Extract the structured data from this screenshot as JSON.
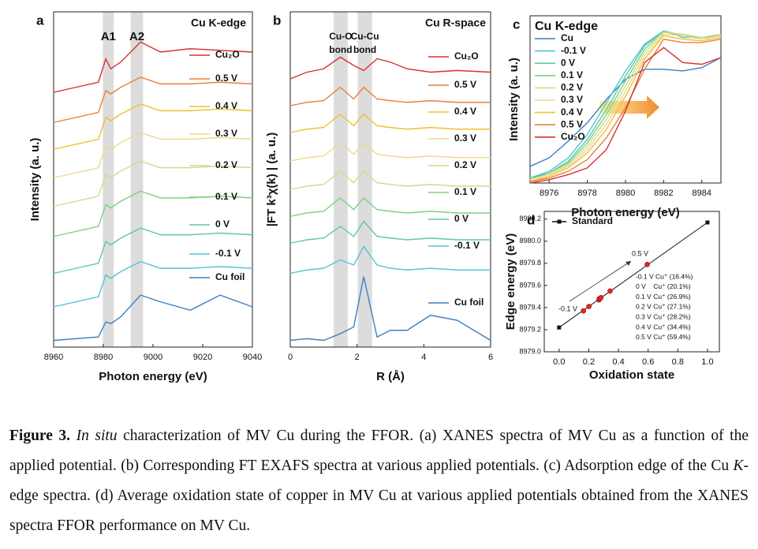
{
  "chart_data": [
    {
      "type": "line",
      "panel_label": "a",
      "title": "Cu K-edge",
      "xlabel": "Photon energy (eV)",
      "ylabel": "Intensity (a. u.)",
      "xlim": [
        8960,
        9040
      ],
      "xticks": [
        8960,
        8980,
        9000,
        9020,
        9040
      ],
      "ylim": [
        0,
        10
      ],
      "legend": "right",
      "regions": [
        {
          "label": [
            "A1"
          ],
          "x": [
            8979.8,
            8984.2
          ]
        },
        {
          "label": [
            "A2"
          ],
          "x": [
            8991,
            8996
          ]
        }
      ],
      "x": [
        8960,
        8978,
        8981,
        8983,
        8987,
        8995,
        9003,
        9015,
        9027,
        9040
      ],
      "series": [
        {
          "name": "Cu₂O",
          "color": "#d83232",
          "values": [
            7.6,
            7.9,
            8.6,
            8.3,
            8.5,
            9.1,
            8.8,
            8.9,
            8.85,
            8.8
          ]
        },
        {
          "name": "0.5 V",
          "color": "#e8803a",
          "values": [
            6.7,
            7.0,
            7.65,
            7.55,
            7.75,
            8.05,
            7.85,
            7.85,
            7.9,
            7.85
          ]
        },
        {
          "name": "0.4 V",
          "color": "#f0c030",
          "values": [
            5.9,
            6.2,
            6.85,
            6.75,
            6.95,
            7.25,
            7.05,
            7.05,
            7.1,
            7.05
          ]
        },
        {
          "name": "0.3 V",
          "color": "#ecd98e",
          "values": [
            5.05,
            5.35,
            6.0,
            5.9,
            6.1,
            6.4,
            6.2,
            6.2,
            6.25,
            6.2
          ]
        },
        {
          "name": "0.2 V",
          "color": "#cfdc8a",
          "values": [
            4.2,
            4.5,
            5.15,
            5.05,
            5.25,
            5.55,
            5.35,
            5.35,
            5.4,
            5.35
          ]
        },
        {
          "name": "0.1 V",
          "color": "#7fcf80",
          "values": [
            3.3,
            3.6,
            4.25,
            4.15,
            4.35,
            4.65,
            4.45,
            4.45,
            4.5,
            4.45
          ]
        },
        {
          "name": "0 V",
          "color": "#5ec8a8",
          "values": [
            2.2,
            2.5,
            3.15,
            3.05,
            3.25,
            3.55,
            3.35,
            3.35,
            3.4,
            3.35
          ]
        },
        {
          "name": "-0.1 V",
          "color": "#50c6d6",
          "values": [
            1.2,
            1.5,
            2.15,
            2.05,
            2.25,
            2.55,
            2.35,
            2.35,
            2.4,
            2.35
          ]
        },
        {
          "name": "Cu foil",
          "color": "#3d7fbf",
          "values": [
            0.2,
            0.3,
            0.75,
            0.7,
            0.9,
            1.55,
            1.35,
            1.1,
            1.55,
            1.2
          ]
        }
      ]
    },
    {
      "type": "line",
      "panel_label": "b",
      "title": "Cu R-space",
      "xlabel": "R (Å)",
      "ylabel": "|FT k³χ(k) | (a. u.)",
      "xlim": [
        0,
        6
      ],
      "xticks": [
        0,
        2,
        4,
        6
      ],
      "ylim": [
        0,
        10
      ],
      "legend": "right",
      "regions": [
        {
          "label": [
            "Cu-O",
            "bond"
          ],
          "x": [
            1.3,
            1.72
          ]
        },
        {
          "label": [
            "Cu-Cu",
            "bond"
          ],
          "x": [
            2.02,
            2.45
          ]
        }
      ],
      "x": [
        0,
        0.5,
        1,
        1.5,
        1.9,
        2.2,
        2.6,
        3,
        3.5,
        4.2,
        5,
        6
      ],
      "series": [
        {
          "name": "Cu₂O",
          "color": "#d83232",
          "values": [
            8.0,
            8.2,
            8.3,
            8.65,
            8.4,
            8.25,
            8.6,
            8.5,
            8.3,
            8.2,
            8.25,
            8.2
          ]
        },
        {
          "name": "0.5 V",
          "color": "#e8803a",
          "values": [
            7.2,
            7.3,
            7.35,
            7.75,
            7.4,
            7.75,
            7.4,
            7.35,
            7.3,
            7.35,
            7.3,
            7.3
          ]
        },
        {
          "name": "0.4 V",
          "color": "#f0c030",
          "values": [
            6.4,
            6.5,
            6.55,
            6.95,
            6.6,
            6.95,
            6.6,
            6.55,
            6.5,
            6.55,
            6.5,
            6.5
          ]
        },
        {
          "name": "0.3 V",
          "color": "#ecd98e",
          "values": [
            5.55,
            5.65,
            5.7,
            6.1,
            5.75,
            6.1,
            5.75,
            5.7,
            5.65,
            5.7,
            5.65,
            5.65
          ]
        },
        {
          "name": "0.2 V",
          "color": "#cfdc8a",
          "values": [
            4.7,
            4.8,
            4.85,
            5.25,
            4.9,
            5.25,
            4.9,
            4.85,
            4.8,
            4.85,
            4.8,
            4.8
          ]
        },
        {
          "name": "0.1 V",
          "color": "#7fcf80",
          "values": [
            3.9,
            4.0,
            4.05,
            4.45,
            4.1,
            4.45,
            4.1,
            4.05,
            4.0,
            4.05,
            4.0,
            4.0
          ]
        },
        {
          "name": "0 V",
          "color": "#5ec8a8",
          "values": [
            3.1,
            3.2,
            3.25,
            3.6,
            3.3,
            3.75,
            3.3,
            3.25,
            3.2,
            3.25,
            3.2,
            3.2
          ]
        },
        {
          "name": "-0.1 V",
          "color": "#50c6d6",
          "values": [
            2.2,
            2.3,
            2.35,
            2.6,
            2.45,
            3.0,
            2.45,
            2.35,
            2.3,
            2.35,
            2.3,
            2.3
          ]
        },
        {
          "name": "Cu foil",
          "color": "#3d7fbf",
          "values": [
            0.2,
            0.25,
            0.2,
            0.4,
            0.6,
            2.1,
            0.3,
            0.5,
            0.5,
            0.95,
            0.8,
            0.2
          ]
        }
      ]
    },
    {
      "type": "line",
      "panel_label": "c",
      "title": "Cu K-edge",
      "xlabel": "Photon energy (eV)",
      "ylabel": "Intensity (a. u.)",
      "xlim": [
        8975,
        8985
      ],
      "xticks": [
        8976,
        8978,
        8980,
        8982,
        8984
      ],
      "ylim": [
        0,
        1
      ],
      "legend": "upper left",
      "x": [
        8975,
        8976,
        8977,
        8978,
        8979,
        8980,
        8981,
        8982,
        8983,
        8984,
        8985
      ],
      "series": [
        {
          "name": "Cu",
          "color": "#3d7fbf",
          "values": [
            0.1,
            0.15,
            0.25,
            0.36,
            0.5,
            0.62,
            0.68,
            0.68,
            0.67,
            0.69,
            0.75
          ]
        },
        {
          "name": "-0.1 V",
          "color": "#50c6d6",
          "values": [
            0.03,
            0.07,
            0.15,
            0.29,
            0.48,
            0.67,
            0.83,
            0.91,
            0.87,
            0.87,
            0.88
          ]
        },
        {
          "name": "0 V",
          "color": "#5ec8a8",
          "values": [
            0.03,
            0.06,
            0.13,
            0.26,
            0.44,
            0.64,
            0.82,
            0.91,
            0.88,
            0.87,
            0.88
          ]
        },
        {
          "name": "0.1 V",
          "color": "#7fcf80",
          "values": [
            0.02,
            0.06,
            0.12,
            0.24,
            0.41,
            0.61,
            0.8,
            0.91,
            0.88,
            0.87,
            0.89
          ]
        },
        {
          "name": "0.2 V",
          "color": "#cfdc8a",
          "values": [
            0.02,
            0.05,
            0.11,
            0.22,
            0.38,
            0.58,
            0.78,
            0.9,
            0.89,
            0.87,
            0.89
          ]
        },
        {
          "name": "0.3 V",
          "color": "#ecd98e",
          "values": [
            0.02,
            0.05,
            0.1,
            0.2,
            0.35,
            0.55,
            0.76,
            0.89,
            0.88,
            0.86,
            0.88
          ]
        },
        {
          "name": "0.4 V",
          "color": "#f0c030",
          "values": [
            0.01,
            0.04,
            0.09,
            0.18,
            0.32,
            0.52,
            0.74,
            0.88,
            0.86,
            0.85,
            0.87
          ]
        },
        {
          "name": "0.5 V",
          "color": "#e8803a",
          "values": [
            0.01,
            0.03,
            0.07,
            0.14,
            0.27,
            0.45,
            0.68,
            0.86,
            0.84,
            0.84,
            0.86
          ]
        },
        {
          "name": "Cu₂O",
          "color": "#d83232",
          "values": [
            0,
            0.02,
            0.05,
            0.09,
            0.2,
            0.43,
            0.72,
            0.81,
            0.72,
            0.71,
            0.75
          ]
        }
      ]
    },
    {
      "type": "scatter",
      "panel_label": "d",
      "xlabel": "Oxidation state",
      "ylabel": "Edge energy (eV)",
      "xlim": [
        -0.1,
        1.08
      ],
      "xticks": [
        {
          "value": 0,
          "label": "0.0"
        },
        {
          "value": 0.2,
          "label": "0.2"
        },
        {
          "value": 0.4,
          "label": "0.4"
        },
        {
          "value": 0.6,
          "label": "0.6"
        },
        {
          "value": 0.8,
          "label": "0.8"
        },
        {
          "value": 1,
          "label": "1.0"
        }
      ],
      "ylim": [
        8979.0,
        8980.27
      ],
      "yticks": [
        {
          "value": 8979,
          "label": "8979.0"
        },
        {
          "value": 8979.2,
          "label": "8979.2"
        },
        {
          "value": 8979.4,
          "label": "8979.4"
        },
        {
          "value": 8979.6,
          "label": "8979.6"
        },
        {
          "value": 8979.8,
          "label": "8979.8"
        },
        {
          "value": 8980,
          "label": "8980.0"
        },
        {
          "value": 8980.2,
          "label": "8980.2"
        }
      ],
      "legend": "upper left",
      "series": [
        {
          "name": "Standard",
          "color": "#111111",
          "marker": "square",
          "line": true,
          "x": [
            0,
            1
          ],
          "values": [
            8979.22,
            8980.17
          ]
        },
        {
          "color": "#e02828",
          "marker": "circle",
          "x": [
            0.164,
            0.201,
            0.269,
            0.271,
            0.282,
            0.344,
            0.594
          ],
          "values": [
            8979.37,
            8979.41,
            8979.47,
            8979.48,
            8979.49,
            8979.55,
            8979.79
          ]
        }
      ],
      "annotations": [
        "-0.1 V",
        "0.5 V"
      ],
      "notes": [
        "-0.1 V Cu⁺ (16.4%)",
        "0 V    Cu⁺ (20.1%)",
        "0.1 V Cu⁺ (26.9%)",
        "0.2 V Cu⁺ (27.1%)",
        "0.3 V Cu⁺ (28.2%)",
        "0.4 V Cu⁺ (34.4%)",
        "0.5 V Cu⁺ (59.4%)"
      ]
    }
  ],
  "caption": [
    {
      "text": "Figure 3.",
      "style": "bold"
    },
    {
      "text": " ",
      "style": "normal"
    },
    {
      "text": "In situ",
      "style": "italic"
    },
    {
      "text": " characterization of MV Cu during the FFOR. (a) XANES spectra of MV Cu as a function of the applied potential. (b) Corresponding FT EXAFS spectra at various applied potentials. (c) Adsorption edge of the Cu ",
      "style": "normal"
    },
    {
      "text": "K",
      "style": "italic"
    },
    {
      "text": "-edge spectra. (d) Average oxidation state of copper in MV Cu at various applied potentials obtained from the XANES spectra FFOR performance on MV Cu.",
      "style": "normal"
    }
  ]
}
